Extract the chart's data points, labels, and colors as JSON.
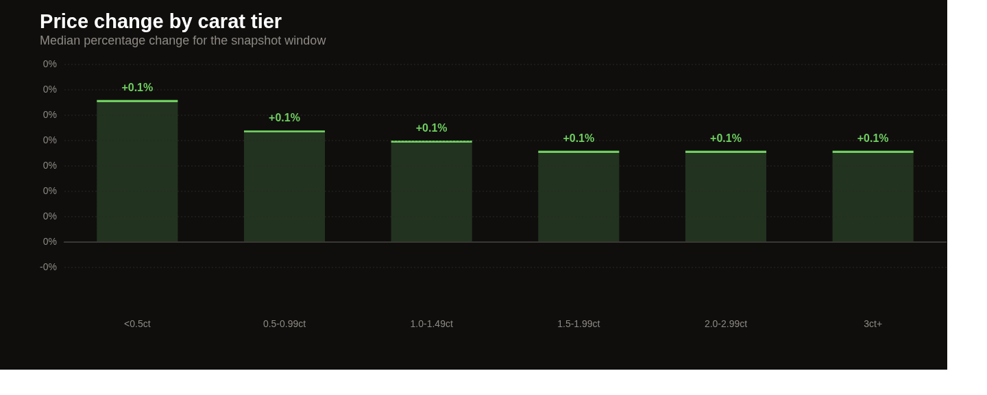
{
  "chart_data": {
    "type": "bar",
    "title": "Price change by carat tier",
    "subtitle": "Median percentage change for the snapshot window",
    "categories": [
      "<0.5ct",
      "0.5-0.99ct",
      "1.0-1.49ct",
      "1.5-1.99ct",
      "2.0-2.99ct",
      "3ct+"
    ],
    "series": [
      {
        "color": "#6fcf5f",
        "values": [
          0.112,
          0.088,
          0.08,
          0.072,
          0.072,
          0.072
        ],
        "value_labels": [
          "+0.1%",
          "+0.1%",
          "+0.1%",
          "+0.1%",
          "+0.1%",
          "+0.1%"
        ]
      }
    ],
    "ylim": [
      -0.02,
      0.14
    ],
    "yticks": [
      {
        "value": -0.02,
        "label": "-0%"
      },
      {
        "value": 0,
        "label": "0%"
      },
      {
        "value": 0.02,
        "label": "0%"
      },
      {
        "value": 0.04,
        "label": "0%"
      },
      {
        "value": 0.06,
        "label": "0%"
      },
      {
        "value": 0.08,
        "label": "0%"
      },
      {
        "value": 0.1,
        "label": "0%"
      },
      {
        "value": 0.12,
        "label": "0%"
      },
      {
        "value": 0.14,
        "label": "0%"
      }
    ],
    "ref_lines": [
      {
        "axis": "y",
        "value": 0,
        "color": "#3a3835"
      }
    ],
    "grid": "y"
  }
}
